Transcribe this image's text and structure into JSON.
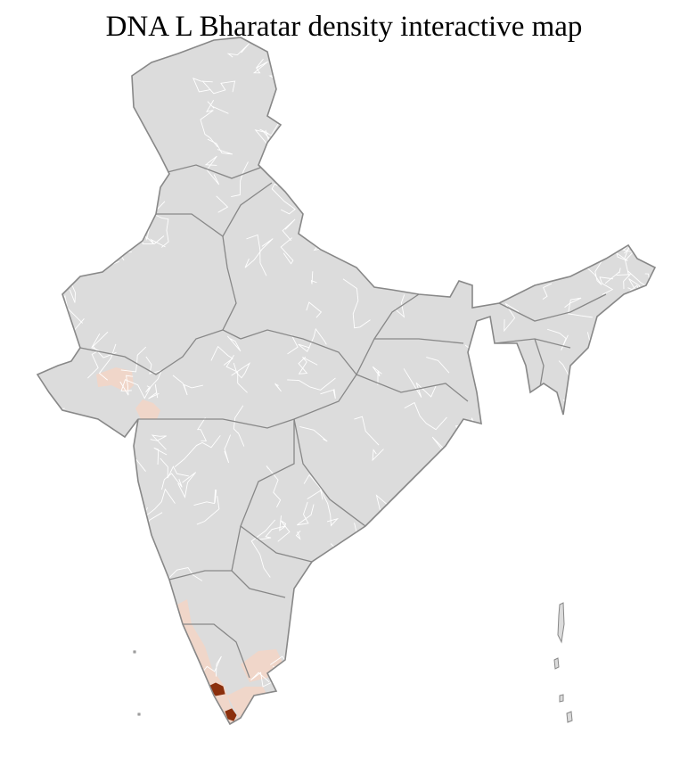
{
  "title": "DNA L Bharatar density interactive map",
  "colors": {
    "land": "#dcdcdc",
    "district_border": "#ffffff",
    "state_border": "#888888",
    "low_density": "#f0d6c9",
    "high_density": "#8b2f0c"
  }
}
